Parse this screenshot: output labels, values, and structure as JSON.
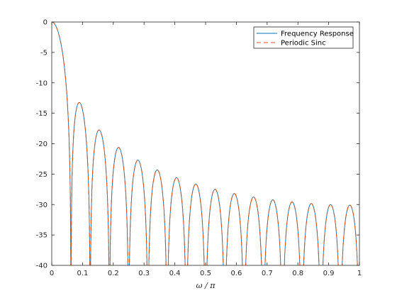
{
  "chart_data": {
    "type": "line",
    "title": "",
    "xlabel": "ω / π",
    "ylabel": "",
    "xlim": [
      0,
      1
    ],
    "ylim": [
      -40,
      0
    ],
    "grid": false,
    "legend_position": "top-right",
    "x_ticks": [
      "0",
      "0.1",
      "0.2",
      "0.3",
      "0.4",
      "0.5",
      "0.6",
      "0.7",
      "0.8",
      "0.9",
      "1"
    ],
    "y_ticks": [
      "0",
      "-5",
      "-10",
      "-15",
      "-20",
      "-25",
      "-30",
      "-35",
      "-40"
    ],
    "filter_length": 32,
    "series": [
      {
        "name": "Frequency Response",
        "color": "#0072BD",
        "style": "solid",
        "x_range": [
          0,
          1
        ],
        "y_range_db": [
          -40,
          0
        ],
        "main_lobe_null_x": 0.0625,
        "side_lobe_peaks": [
          {
            "x": 0.093,
            "y": -13.3
          },
          {
            "x": 0.155,
            "y": -17.8
          },
          {
            "x": 0.218,
            "y": -20.6
          },
          {
            "x": 0.28,
            "y": -22.6
          },
          {
            "x": 0.343,
            "y": -24.3
          },
          {
            "x": 0.405,
            "y": -25.6
          },
          {
            "x": 0.468,
            "y": -26.7
          },
          {
            "x": 0.53,
            "y": -27.7
          },
          {
            "x": 0.593,
            "y": -28.4
          },
          {
            "x": 0.655,
            "y": -29.0
          },
          {
            "x": 0.718,
            "y": -29.5
          },
          {
            "x": 0.78,
            "y": -29.8
          },
          {
            "x": 0.843,
            "y": -30.0
          },
          {
            "x": 0.905,
            "y": -30.1
          },
          {
            "x": 0.968,
            "y": -30.1
          }
        ]
      },
      {
        "name": "Periodic Sinc",
        "color": "#D95319",
        "style": "dashed",
        "x_range": [
          0,
          1
        ],
        "y_range_db": [
          -40,
          0
        ],
        "main_lobe_null_x": 0.0625
      }
    ]
  }
}
